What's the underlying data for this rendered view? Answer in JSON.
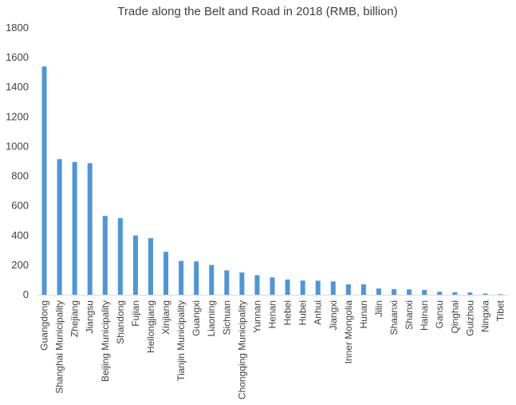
{
  "chart_data": {
    "type": "bar",
    "title": "Trade along the Belt and Road in 2018 (RMB, billion)",
    "xlabel": "",
    "ylabel": "",
    "ylim": [
      0,
      1800
    ],
    "yticks": [
      0,
      200,
      400,
      600,
      800,
      1000,
      1200,
      1400,
      1600,
      1800
    ],
    "grid": false,
    "legend": "none",
    "bar_color": "#4e96d8",
    "categories": [
      "Guangdong",
      "Shanghai Municipality",
      "Zhejiang",
      "Jiangsu",
      "Beijing Municipality",
      "Shandong",
      "Fujian",
      "Heilongjiang",
      "Xinjiang",
      "Tianjin Municipality",
      "Guangxi",
      "Liaoning",
      "Sichuan",
      "Chongqing Municipality",
      "Yunnan",
      "Henan",
      "Hebei",
      "Hubei",
      "Anhui",
      "Jiangxi",
      "Inner Mongolia",
      "Hunan",
      "Jilin",
      "Shaanxi",
      "Shanxi",
      "Hainan",
      "Gansu",
      "Qinghai",
      "Guizhou",
      "Ningxia",
      "Tibet"
    ],
    "values": [
      1540,
      915,
      895,
      888,
      532,
      517,
      400,
      382,
      290,
      228,
      225,
      201,
      165,
      150,
      132,
      117,
      103,
      96,
      95,
      90,
      70,
      70,
      42,
      38,
      36,
      33,
      20,
      17,
      15,
      8,
      4
    ]
  }
}
